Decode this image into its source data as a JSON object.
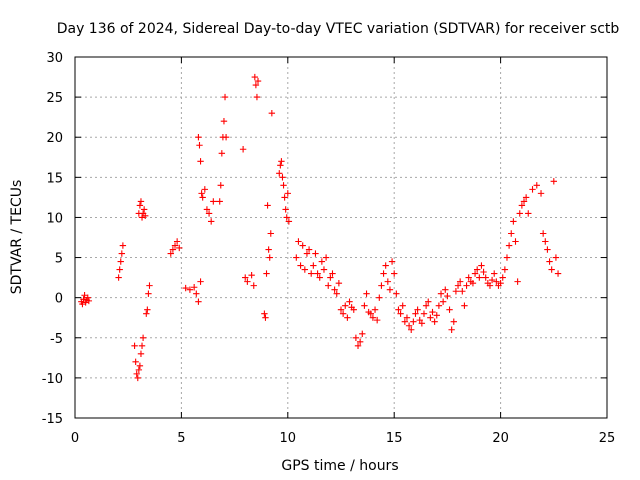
{
  "chart_data": {
    "type": "scatter",
    "title": "Day 136 of 2024, Sidereal Day-to-day VTEC variation (SDTVAR) for receiver sctb",
    "xlabel": "GPS time / hours",
    "ylabel": "SDTVAR / TECUs",
    "xlim": [
      0,
      25
    ],
    "ylim": [
      -15,
      30
    ],
    "xticks": [
      0,
      5,
      10,
      15,
      20,
      25
    ],
    "yticks": [
      -15,
      -10,
      -5,
      0,
      5,
      10,
      15,
      20,
      25,
      30
    ],
    "xtick_labels": [
      "0",
      "5",
      "10",
      "15",
      "20",
      "25"
    ],
    "ytick_labels": [
      "-15",
      "-10",
      "-5",
      "0",
      "5",
      "10",
      "15",
      "20",
      "25",
      "30"
    ],
    "grid": true,
    "marker": "+",
    "series_color": "#ff0000",
    "series": [
      {
        "name": "SDTVAR",
        "x": [
          0.3,
          0.35,
          0.4,
          0.45,
          0.5,
          0.55,
          0.6,
          0.65,
          2.05,
          2.1,
          2.15,
          2.2,
          2.25,
          2.8,
          2.85,
          2.9,
          2.95,
          3.0,
          3.05,
          3.1,
          3.15,
          3.2,
          3.0,
          3.05,
          3.1,
          3.15,
          3.2,
          3.25,
          3.3,
          3.35,
          3.4,
          3.45,
          3.5,
          4.5,
          4.6,
          4.7,
          4.8,
          4.9,
          5.2,
          5.4,
          5.6,
          5.7,
          5.8,
          5.9,
          5.8,
          5.85,
          5.9,
          5.95,
          6.0,
          6.1,
          6.2,
          6.3,
          6.4,
          6.5,
          6.8,
          6.85,
          6.9,
          6.95,
          7.0,
          7.05,
          7.1,
          7.9,
          8.0,
          8.1,
          8.3,
          8.4,
          8.45,
          8.5,
          8.55,
          8.6,
          8.9,
          8.95,
          9.0,
          9.05,
          9.1,
          9.15,
          9.2,
          9.25,
          9.6,
          9.65,
          9.7,
          9.75,
          9.8,
          9.85,
          9.9,
          9.95,
          10.0,
          10.05,
          10.4,
          10.5,
          10.6,
          10.7,
          10.8,
          10.9,
          11.0,
          11.1,
          11.2,
          11.3,
          11.4,
          11.5,
          11.6,
          11.7,
          11.8,
          11.9,
          12.0,
          12.1,
          12.2,
          12.3,
          12.4,
          12.5,
          12.6,
          12.7,
          12.8,
          12.9,
          13.0,
          13.1,
          13.2,
          13.3,
          13.4,
          13.5,
          13.6,
          13.7,
          13.8,
          13.9,
          14.0,
          14.1,
          14.2,
          14.3,
          14.4,
          14.5,
          14.6,
          14.7,
          14.8,
          14.9,
          15.0,
          15.1,
          15.2,
          15.3,
          15.4,
          15.5,
          15.6,
          15.7,
          15.8,
          15.9,
          16.0,
          16.1,
          16.2,
          16.3,
          16.4,
          16.5,
          16.6,
          16.7,
          16.8,
          16.9,
          17.0,
          17.1,
          17.2,
          17.3,
          17.4,
          17.5,
          17.6,
          17.7,
          17.8,
          17.9,
          18.0,
          18.1,
          18.2,
          18.3,
          18.4,
          18.5,
          18.6,
          18.7,
          18.8,
          18.9,
          19.0,
          19.1,
          19.2,
          19.3,
          19.4,
          19.5,
          19.6,
          19.7,
          19.8,
          19.9,
          20.0,
          20.1,
          20.2,
          20.3,
          20.4,
          20.5,
          20.6,
          20.7,
          20.8,
          20.9,
          21.0,
          21.1,
          21.2,
          21.3,
          21.5,
          21.7,
          21.9,
          22.0,
          22.1,
          22.2,
          22.3,
          22.4,
          22.5,
          22.6,
          22.7
        ],
        "y": [
          -0.5,
          -0.8,
          -0.2,
          0.3,
          -0.6,
          -0.3,
          0.0,
          -0.4,
          2.5,
          3.5,
          4.5,
          5.5,
          6.5,
          -6.0,
          -8.0,
          -9.5,
          -10.0,
          -9.0,
          -8.5,
          -7.0,
          -6.0,
          -5.0,
          10.5,
          11.5,
          12.0,
          10.0,
          10.5,
          11.0,
          10.2,
          -2.0,
          -1.5,
          0.5,
          1.5,
          5.5,
          6.0,
          6.5,
          7.0,
          6.2,
          1.2,
          1.0,
          1.3,
          0.5,
          -0.5,
          2.0,
          20.0,
          19.0,
          17.0,
          13.0,
          12.5,
          13.5,
          11.0,
          10.5,
          9.5,
          12.0,
          12.0,
          14.0,
          18.0,
          20.0,
          22.0,
          25.0,
          20.0,
          18.5,
          2.5,
          2.0,
          2.8,
          1.5,
          27.5,
          26.5,
          25.0,
          27.0,
          -2.0,
          -2.5,
          3.0,
          11.5,
          6.0,
          5.0,
          8.0,
          23.0,
          15.5,
          16.5,
          17.0,
          15.0,
          14.0,
          12.5,
          11.0,
          10.0,
          13.0,
          9.5,
          5.0,
          7.0,
          4.0,
          6.5,
          3.5,
          5.5,
          6.0,
          3.0,
          4.0,
          5.5,
          3.0,
          2.5,
          4.5,
          3.5,
          5.0,
          1.5,
          2.5,
          3.0,
          1.0,
          0.5,
          1.8,
          -1.5,
          -2.0,
          -1.0,
          -2.5,
          -0.5,
          -1.2,
          -1.5,
          -5.0,
          -6.0,
          -5.5,
          -4.5,
          -1.0,
          0.5,
          -1.8,
          -2.0,
          -2.5,
          -1.5,
          -2.8,
          0.0,
          1.5,
          3.0,
          4.0,
          2.0,
          1.0,
          4.5,
          3.0,
          0.5,
          -1.5,
          -2.0,
          -1.0,
          -3.0,
          -2.5,
          -3.5,
          -4.0,
          -3.0,
          -2.0,
          -1.5,
          -2.8,
          -3.2,
          -2.0,
          -1.0,
          -0.5,
          -2.5,
          -1.8,
          -3.0,
          -2.2,
          -1.0,
          0.5,
          -0.5,
          1.0,
          0.2,
          -1.5,
          -4.0,
          -3.0,
          0.8,
          1.5,
          2.0,
          0.8,
          -1.0,
          1.5,
          2.5,
          2.0,
          1.8,
          3.0,
          3.5,
          2.5,
          4.0,
          3.2,
          2.5,
          1.8,
          1.5,
          2.2,
          3.0,
          2.0,
          1.5,
          1.8,
          2.5,
          3.5,
          5.0,
          6.5,
          8.0,
          9.5,
          7.0,
          2.0,
          10.5,
          11.5,
          12.0,
          12.5,
          10.5,
          13.5,
          14.0,
          13.0,
          8.0,
          7.0,
          6.0,
          4.5,
          3.5,
          14.5,
          5.0,
          3.0
        ]
      }
    ]
  }
}
